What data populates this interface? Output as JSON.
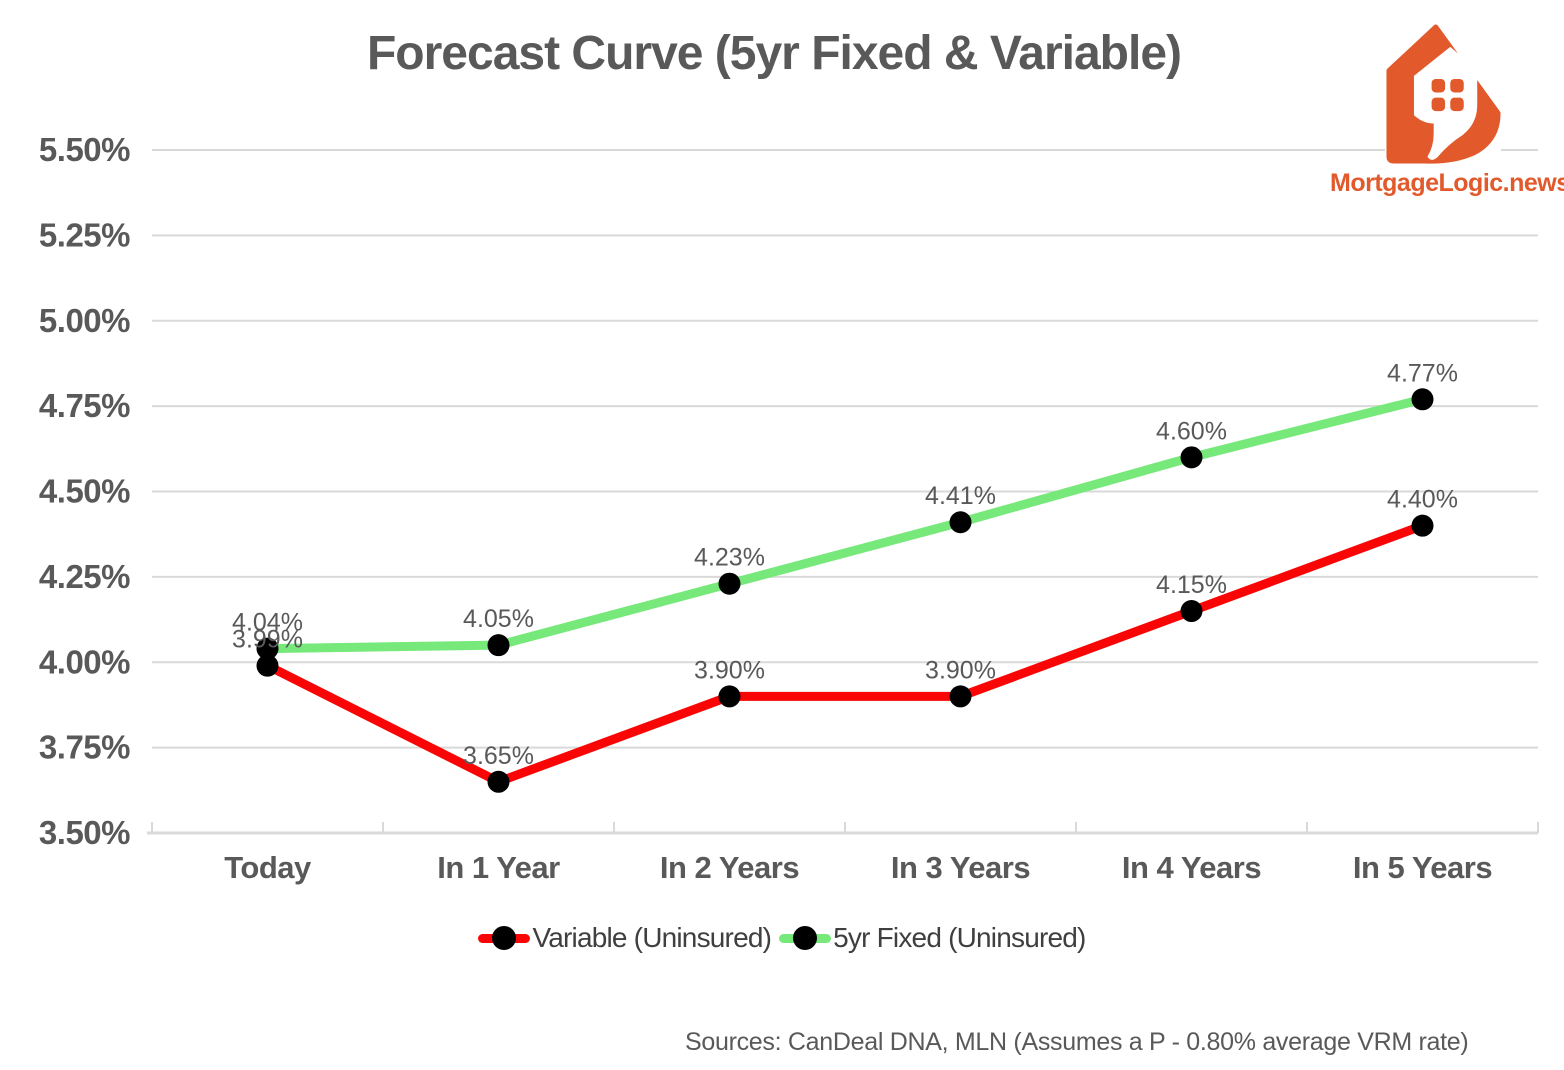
{
  "header": {
    "title": "Forecast Curve (5yr Fixed & Variable)"
  },
  "logo": {
    "brand": "MortgageLogic.news",
    "color": "#E2592B"
  },
  "chart_data": {
    "type": "line",
    "title": "Forecast Curve (5yr Fixed & Variable)",
    "categories": [
      "Today",
      "In 1 Year",
      "In 2 Years",
      "In 3 Years",
      "In 4 Years",
      "In 5 Years"
    ],
    "series": [
      {
        "name": "Variable (Uninsured)",
        "color": "#FA0505",
        "values": [
          3.99,
          3.65,
          3.9,
          3.9,
          4.15,
          4.4
        ],
        "point_labels": [
          "3.99%",
          "3.65%",
          "3.90%",
          "3.90%",
          "4.15%",
          "4.40%"
        ]
      },
      {
        "name": "5yr Fixed (Uninsured)",
        "color": "#77E87A",
        "values": [
          4.04,
          4.05,
          4.23,
          4.41,
          4.6,
          4.77
        ],
        "point_labels": [
          "4.04%",
          "4.05%",
          "4.23%",
          "4.41%",
          "4.60%",
          "4.77%"
        ]
      }
    ],
    "ylim": [
      3.5,
      5.5
    ],
    "ytick_step": 0.25,
    "ytick_labels": [
      "3.50%",
      "3.75%",
      "4.00%",
      "4.25%",
      "4.50%",
      "4.75%",
      "5.00%",
      "5.25%",
      "5.50%"
    ],
    "grid": true,
    "legend_position": "bottom",
    "marker_color": "#000000",
    "gridline_color": "#D9D9D9",
    "axis_label_color": "#595959",
    "data_label_color": "#595959"
  },
  "legend": {
    "items": [
      {
        "label": "Variable (Uninsured)",
        "color": "#FA0505"
      },
      {
        "label": "5yr Fixed (Uninsured)",
        "color": "#77E87A"
      }
    ]
  },
  "footer": {
    "source": "Sources: CanDeal DNA, MLN (Assumes a P - 0.80% average VRM rate)"
  }
}
